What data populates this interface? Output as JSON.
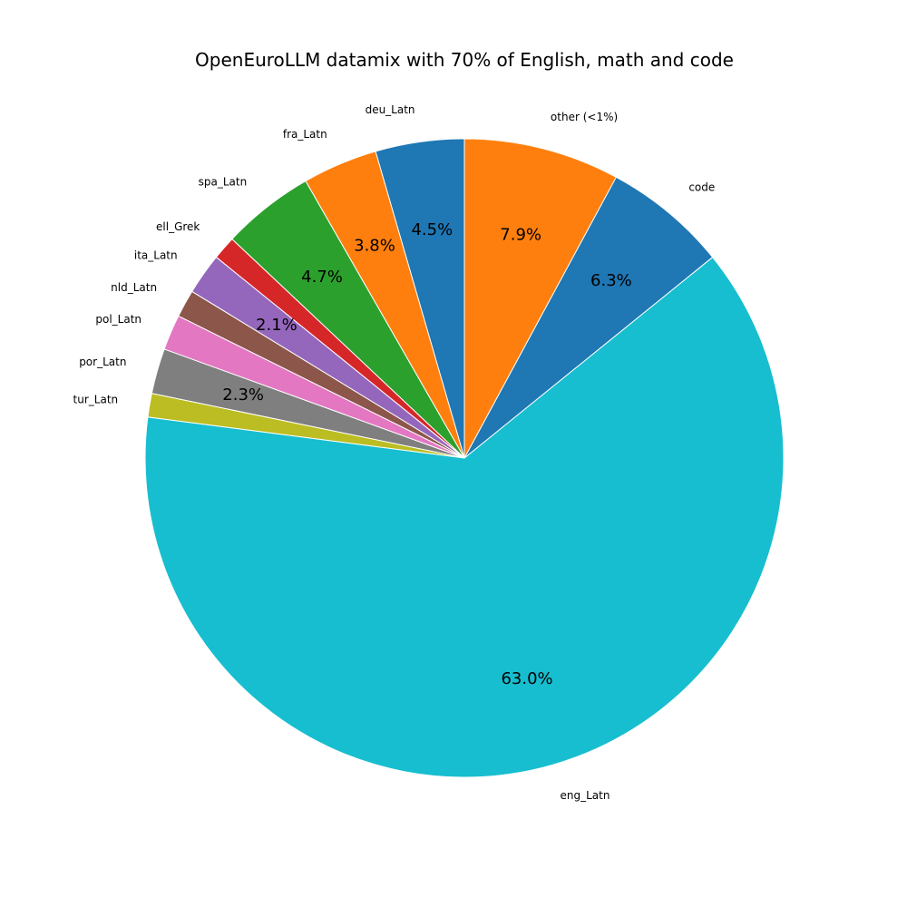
{
  "chart_data": {
    "type": "pie",
    "title": "OpenEuroLLM datamix with 70% of English, math and code",
    "start_angle_deg": 90,
    "direction": "counterclockwise",
    "slices": [
      {
        "label": "deu_Latn",
        "value": 4.5,
        "pct_label": "4.5%",
        "color": "#1f77b4"
      },
      {
        "label": "fra_Latn",
        "value": 3.8,
        "pct_label": "3.8%",
        "color": "#ff7f0e"
      },
      {
        "label": "spa_Latn",
        "value": 4.7,
        "pct_label": "4.7%",
        "color": "#2ca02c"
      },
      {
        "label": "ell_Grek",
        "value": 1.2,
        "pct_label": "",
        "color": "#d62728"
      },
      {
        "label": "ita_Latn",
        "value": 2.1,
        "pct_label": "2.1%",
        "color": "#9467bd"
      },
      {
        "label": "nld_Latn",
        "value": 1.4,
        "pct_label": "",
        "color": "#8c564b"
      },
      {
        "label": "pol_Latn",
        "value": 1.8,
        "pct_label": "",
        "color": "#e377c2"
      },
      {
        "label": "por_Latn",
        "value": 2.3,
        "pct_label": "2.3%",
        "color": "#7f7f7f"
      },
      {
        "label": "tur_Latn",
        "value": 1.2,
        "pct_label": "",
        "color": "#bcbd22"
      },
      {
        "label": "eng_Latn",
        "value": 63.0,
        "pct_label": "63.0%",
        "color": "#17becf"
      },
      {
        "label": "code",
        "value": 6.3,
        "pct_label": "6.3%",
        "color": "#1f77b4"
      },
      {
        "label": "other (<1%)",
        "value": 7.9,
        "pct_label": "7.9%",
        "color": "#ff7f0e"
      }
    ]
  }
}
